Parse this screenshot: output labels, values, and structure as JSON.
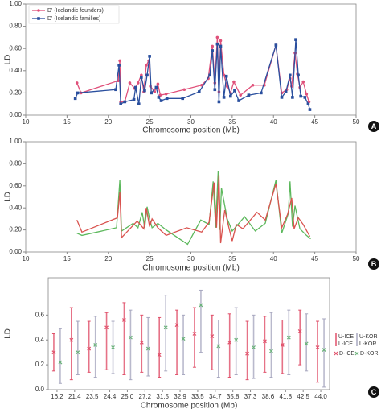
{
  "chart_data": [
    {
      "type": "line",
      "panel_label": "A",
      "y_label": "LD",
      "x_label": "Chromosome position (Mb)",
      "xlim": [
        10,
        50
      ],
      "xticks": [
        10,
        15,
        20,
        25,
        30,
        35,
        40,
        45,
        50
      ],
      "ylim": [
        0,
        1
      ],
      "yticks": [
        {
          "value": 0,
          "label": "0.00"
        },
        {
          "value": 0.2,
          "label": "0.20"
        },
        {
          "value": 0.4,
          "label": "0.40"
        },
        {
          "value": 0.6,
          "label": "0.60"
        },
        {
          "value": 0.8,
          "label": "0.80"
        },
        {
          "value": 1,
          "label": "1.00"
        }
      ],
      "legend": "top-left",
      "series": [
        {
          "name": "D' (Icelandic founders)",
          "color": "#e0507a",
          "marker": "circle",
          "x": [
            16.2,
            16.7,
            21.2,
            21.4,
            21.5,
            22.0,
            22.6,
            23.2,
            23.6,
            24.0,
            24.3,
            24.6,
            24.9,
            25.1,
            25.6,
            26.0,
            26.3,
            27.0,
            29.2,
            31.3,
            32.1,
            32.6,
            32.9,
            33.2,
            33.4,
            33.6,
            34.0,
            34.4,
            34.8,
            35.2,
            36.0,
            37.5,
            38.9,
            40.3,
            41.0,
            41.6,
            42.0,
            42.2,
            42.6,
            42.9,
            43.2,
            43.6,
            44.0,
            44.3
          ],
          "values": [
            0.29,
            0.2,
            0.31,
            0.49,
            0.12,
            0.12,
            0.29,
            0.24,
            0.29,
            0.36,
            0.21,
            0.45,
            0.49,
            0.26,
            0.21,
            0.28,
            0.18,
            0.19,
            0.23,
            0.27,
            0.33,
            0.62,
            0.29,
            0.7,
            0.21,
            0.67,
            0.36,
            0.26,
            0.2,
            0.3,
            0.18,
            0.27,
            0.27,
            0.63,
            0.2,
            0.23,
            0.33,
            0.26,
            0.56,
            0.37,
            0.25,
            0.3,
            0.19,
            0.12
          ]
        },
        {
          "name": "D' (Icelandic families)",
          "color": "#2a4f9e",
          "marker": "square",
          "x": [
            16.0,
            16.3,
            20.9,
            21.3,
            21.5,
            22.0,
            23.1,
            23.3,
            23.7,
            24.0,
            24.4,
            24.7,
            25.0,
            25.2,
            25.8,
            26.1,
            26.4,
            27.1,
            29.0,
            31.0,
            32.3,
            32.6,
            32.9,
            33.2,
            33.4,
            33.6,
            34.0,
            34.3,
            34.8,
            35.3,
            35.8,
            37.0,
            38.5,
            40.3,
            41.0,
            41.5,
            42.0,
            42.3,
            42.7,
            43.0,
            43.3,
            43.8,
            44.2,
            44.4
          ],
          "values": [
            0.15,
            0.2,
            0.23,
            0.45,
            0.1,
            0.12,
            0.14,
            0.25,
            0.1,
            0.34,
            0.22,
            0.36,
            0.53,
            0.2,
            0.25,
            0.16,
            0.13,
            0.15,
            0.15,
            0.21,
            0.36,
            0.58,
            0.23,
            0.64,
            0.12,
            0.62,
            0.16,
            0.35,
            0.17,
            0.22,
            0.13,
            0.18,
            0.2,
            0.63,
            0.16,
            0.21,
            0.36,
            0.16,
            0.68,
            0.36,
            0.17,
            0.16,
            0.1,
            0.05
          ]
        }
      ]
    },
    {
      "type": "line",
      "panel_label": "B",
      "y_label": "LD",
      "x_label": "Chromosome position (Mb)",
      "xlim": [
        10,
        50
      ],
      "xticks": [
        10,
        15,
        20,
        25,
        30,
        35,
        40,
        45,
        50
      ],
      "ylim": [
        0,
        1
      ],
      "yticks": [
        {
          "value": 0,
          "label": "0.00"
        },
        {
          "value": 0.2,
          "label": "0.20"
        },
        {
          "value": 0.4,
          "label": "0.40"
        },
        {
          "value": 0.6,
          "label": "0.60"
        },
        {
          "value": 0.8,
          "label": "0.80"
        },
        {
          "value": 1,
          "label": "1.00"
        }
      ],
      "series": [
        {
          "color": "#5cb85c",
          "x": [
            16.2,
            16.8,
            21.0,
            21.4,
            21.6,
            23.0,
            23.6,
            24.1,
            24.4,
            24.7,
            25.0,
            25.3,
            26.0,
            27.0,
            29.6,
            31.2,
            32.2,
            32.7,
            33.0,
            33.3,
            33.5,
            33.7,
            34.4,
            35.0,
            36.5,
            37.8,
            39.0,
            40.3,
            41.0,
            41.8,
            42.0,
            42.3,
            42.6,
            43.2,
            44.0,
            44.5
          ],
          "values": [
            0.17,
            0.15,
            0.22,
            0.65,
            0.19,
            0.26,
            0.22,
            0.36,
            0.22,
            0.41,
            0.3,
            0.22,
            0.26,
            0.2,
            0.07,
            0.29,
            0.25,
            0.64,
            0.22,
            0.73,
            0.2,
            0.58,
            0.3,
            0.19,
            0.32,
            0.19,
            0.26,
            0.65,
            0.17,
            0.35,
            0.64,
            0.23,
            0.42,
            0.21,
            0.15,
            0.12
          ]
        },
        {
          "color": "#d9534f",
          "x": [
            16.2,
            16.8,
            21.1,
            21.4,
            21.6,
            23.5,
            24.3,
            24.6,
            25.0,
            25.3,
            26.0,
            27.0,
            29.5,
            31.3,
            32.2,
            32.8,
            33.1,
            33.4,
            33.6,
            34.1,
            34.6,
            35.0,
            35.5,
            36.3,
            38.0,
            39.0,
            40.3,
            41.0,
            41.7,
            42.2,
            42.5,
            43.0,
            43.6,
            44.4
          ],
          "values": [
            0.29,
            0.18,
            0.31,
            0.54,
            0.13,
            0.28,
            0.21,
            0.4,
            0.23,
            0.3,
            0.22,
            0.15,
            0.22,
            0.18,
            0.27,
            0.63,
            0.22,
            0.7,
            0.08,
            0.38,
            0.22,
            0.1,
            0.25,
            0.21,
            0.36,
            0.29,
            0.62,
            0.22,
            0.34,
            0.49,
            0.21,
            0.31,
            0.25,
            0.14
          ]
        }
      ]
    },
    {
      "type": "errorbar",
      "panel_label": "C",
      "y_label": "LD",
      "x_label": "Chromosome position (Mb)",
      "categories": [
        "16.2",
        "21.4",
        "23.5",
        "24.4",
        "25.0",
        "27.2",
        "31.5",
        "32.9",
        "33.5",
        "34.7",
        "35.8",
        "37.3",
        "38.6",
        "41.8",
        "42.5",
        "44.0"
      ],
      "ylim": [
        0,
        0.9
      ],
      "yticks": [
        {
          "value": 0,
          "label": "0.0"
        },
        {
          "value": 0.2,
          "label": "0.2"
        },
        {
          "value": 0.4,
          "label": "0.4"
        },
        {
          "value": 0.6,
          "label": "0.6"
        }
      ],
      "series": [
        {
          "name": "D-ICE",
          "upper_name": "U-ICE",
          "lower_name": "L-ICE",
          "color": "#e0506a",
          "bar_color": "#e0506a",
          "values": [
            0.3,
            0.4,
            0.33,
            0.5,
            0.56,
            0.38,
            0.28,
            0.52,
            0.45,
            0.43,
            0.38,
            0.29,
            0.39,
            0.36,
            0.47,
            0.34
          ],
          "lower": [
            0.15,
            0.08,
            0.14,
            0.16,
            0.12,
            0.14,
            0.1,
            0.12,
            0.18,
            0.16,
            0.1,
            0.08,
            0.14,
            0.13,
            0.2,
            0.06
          ],
          "upper": [
            0.45,
            0.66,
            0.55,
            0.62,
            0.7,
            0.6,
            0.58,
            0.64,
            0.66,
            0.6,
            0.61,
            0.55,
            0.59,
            0.56,
            0.64,
            0.55
          ]
        },
        {
          "name": "D-KOR",
          "upper_name": "U-KOR",
          "lower_name": "L-KOR",
          "color": "#6ab27a",
          "bar_color": "#a8a8c0",
          "values": [
            0.22,
            0.3,
            0.36,
            0.34,
            0.42,
            0.33,
            0.5,
            0.41,
            0.68,
            0.35,
            0.4,
            0.34,
            0.31,
            0.42,
            0.37,
            0.32
          ],
          "lower": [
            0.05,
            0.12,
            0.1,
            0.13,
            0.08,
            0.11,
            0.15,
            0.12,
            0.3,
            0.1,
            0.12,
            0.09,
            0.1,
            0.12,
            0.15,
            0.02
          ],
          "upper": [
            0.49,
            0.55,
            0.59,
            0.55,
            0.64,
            0.58,
            0.76,
            0.6,
            0.8,
            0.56,
            0.66,
            0.6,
            0.62,
            0.64,
            0.61,
            0.57
          ]
        }
      ]
    }
  ]
}
